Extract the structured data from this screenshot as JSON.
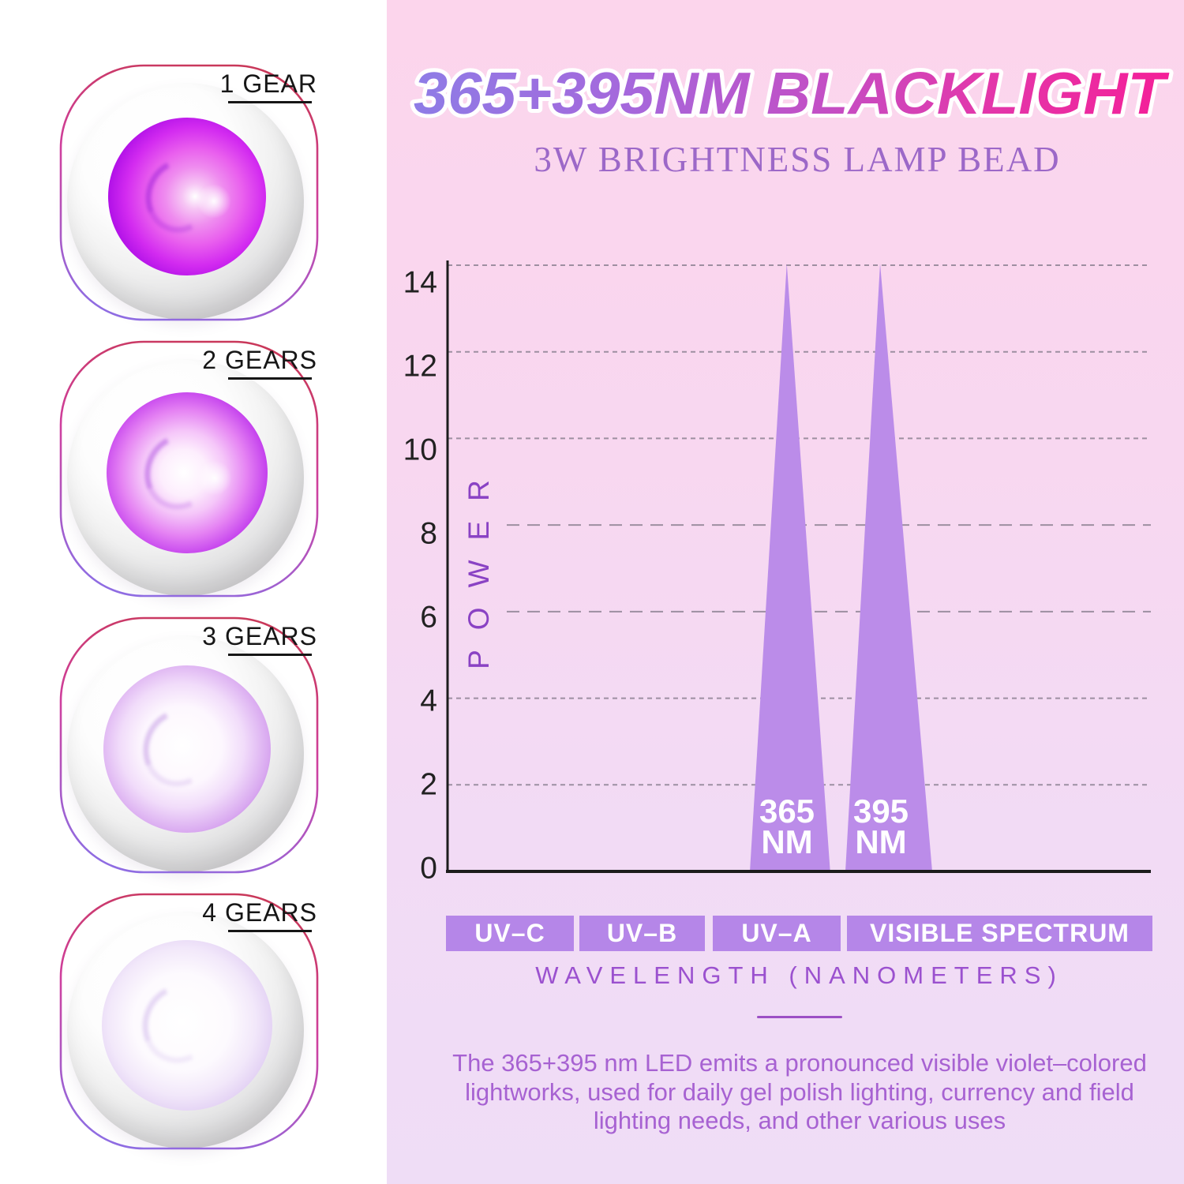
{
  "header": {
    "title": "365+395NM BLACKLIGHT",
    "subtitle": "3W BRIGHTNESS LAMP BEAD"
  },
  "left_panel": {
    "lamps": [
      {
        "label": "1 GEAR"
      },
      {
        "label": "2 GEARS"
      },
      {
        "label": "3 GEARS"
      },
      {
        "label": "4 GEARS"
      }
    ]
  },
  "chart_data": {
    "type": "area",
    "title": "365+395NM BLACKLIGHT",
    "subtitle": "3W BRIGHTNESS LAMP BEAD",
    "ylabel": "POWER",
    "xlabel": "WAVELENGTH (NANOMETERS)",
    "ylim": [
      0,
      14.5
    ],
    "xlim": [
      200,
      500
    ],
    "yticks": [
      0,
      2,
      4,
      6,
      8,
      10,
      12,
      14
    ],
    "xticks": [
      200,
      300,
      400,
      500
    ],
    "grid": "horizontal-dashed",
    "legend_position": "none",
    "peaks": [
      {
        "name": "365 NM",
        "label": "365\nNM",
        "wavelength_nm": 365,
        "power": 14.4,
        "draw": {
          "apex_nm": 345,
          "base_from_nm": 328,
          "base_to_nm": 365
        }
      },
      {
        "name": "395 NM",
        "label": "395\nNM",
        "wavelength_nm": 395,
        "power": 14.4,
        "draw": {
          "apex_nm": 388,
          "base_from_nm": 372,
          "base_to_nm": 412
        }
      }
    ],
    "bands": [
      {
        "label": "UV–C",
        "from_nm": 200,
        "to_nm": 258
      },
      {
        "label": "UV–B",
        "from_nm": 260,
        "to_nm": 316
      },
      {
        "label": "UV–A",
        "from_nm": 320,
        "to_nm": 370
      },
      {
        "label": "VISIBLE SPECTRUM",
        "from_nm": 373,
        "to_nm": 500
      }
    ]
  },
  "footer": {
    "description": "The 365+395 nm LED emits a pronounced visible violet–colored\nlightworks, used for daily gel polish lighting, currency and field\nlighting needs, and other various uses"
  },
  "colors": {
    "title_gradient": [
      "#8e7ce6",
      "#a568dc",
      "#c44ec4",
      "#e238ab",
      "#f41f98"
    ],
    "subtitle": "#9c68c8",
    "axis": "#1c1c1c",
    "grid": "#8e8394",
    "tick_label": "#222222",
    "power_label": "#8a42c4",
    "peak_fill": "#bb8ce9",
    "peak_label": "#ffffff",
    "band_bg": "#b586e8",
    "band_text": "#ffffff",
    "wavelength_label": "#9b51cf",
    "divider": "#9c50c5",
    "description": "#a762d2",
    "gear_label": "#161616",
    "frame_gradient": [
      "#c9385a",
      "#cf3f9e",
      "#8f6ce2"
    ],
    "bg_right_top": "#fcd5ec",
    "bg_right_bottom": "#efddf6"
  }
}
